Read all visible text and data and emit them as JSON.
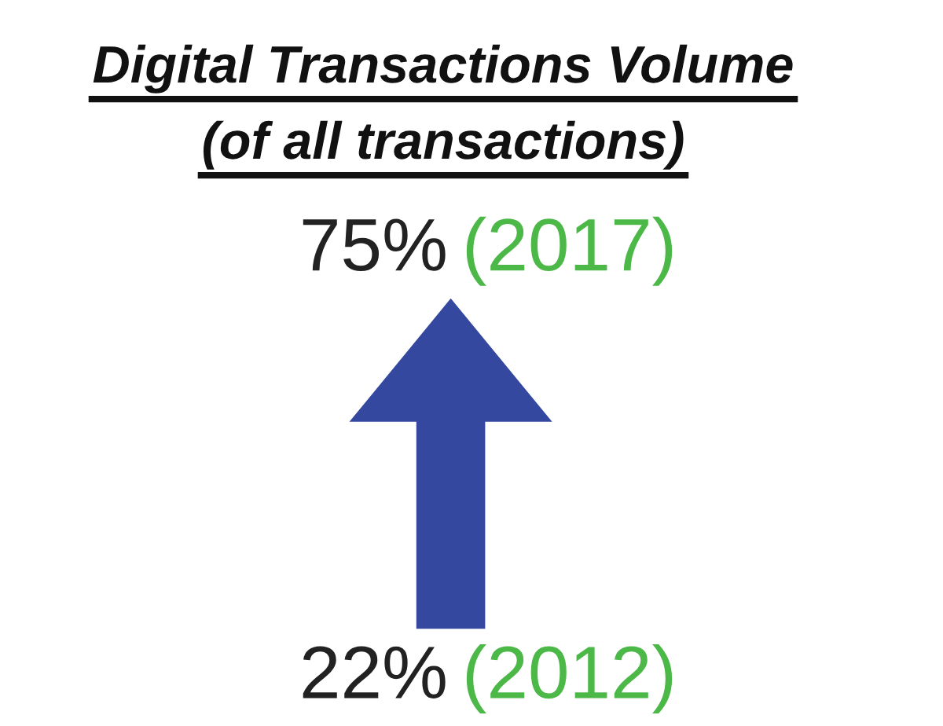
{
  "chart_data": {
    "type": "other",
    "title": "Digital Transactions Volume",
    "subtitle": "(of all transactions)",
    "categories": [
      "(2012)",
      "(2017)"
    ],
    "color": "#3548a0",
    "series": [
      {
        "color": "#222222",
        "values": [
          22,
          75
        ],
        "value_labels": [
          "22%",
          "75%"
        ]
      }
    ],
    "colors": [
      "#4cb848",
      "#4cb848"
    ]
  }
}
